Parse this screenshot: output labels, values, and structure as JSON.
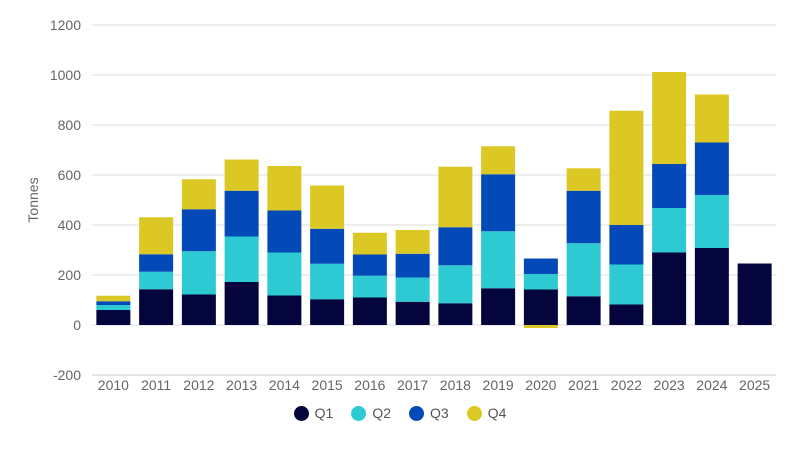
{
  "chart_data": {
    "type": "bar",
    "stacked": true,
    "title": "",
    "xlabel": "",
    "ylabel": "Tonnes",
    "ylim": [
      -200,
      1200
    ],
    "yticks": [
      -200,
      0,
      200,
      400,
      600,
      800,
      1000,
      1200
    ],
    "grid": true,
    "legend_position": "bottom",
    "categories": [
      "2010",
      "2011",
      "2012",
      "2013",
      "2014",
      "2015",
      "2016",
      "2017",
      "2018",
      "2019",
      "2020",
      "2021",
      "2022",
      "2023",
      "2024",
      "2025"
    ],
    "series": [
      {
        "name": "Q1",
        "color": "#05053d",
        "values": [
          60,
          143,
          122,
          172,
          118,
          103,
          110,
          93,
          87,
          147,
          142,
          115,
          82,
          290,
          308,
          246
        ]
      },
      {
        "name": "Q2",
        "color": "#2ecad3",
        "values": [
          20,
          70,
          173,
          182,
          172,
          142,
          87,
          97,
          152,
          228,
          62,
          212,
          160,
          178,
          212,
          0
        ]
      },
      {
        "name": "Q3",
        "color": "#034ab8",
        "values": [
          15,
          70,
          168,
          183,
          168,
          140,
          85,
          95,
          152,
          228,
          62,
          210,
          158,
          176,
          210,
          0
        ]
      },
      {
        "name": "Q4",
        "color": "#dcc824",
        "values": [
          22,
          148,
          120,
          125,
          178,
          173,
          87,
          95,
          242,
          112,
          -12,
          90,
          457,
          368,
          192,
          0
        ]
      }
    ]
  }
}
